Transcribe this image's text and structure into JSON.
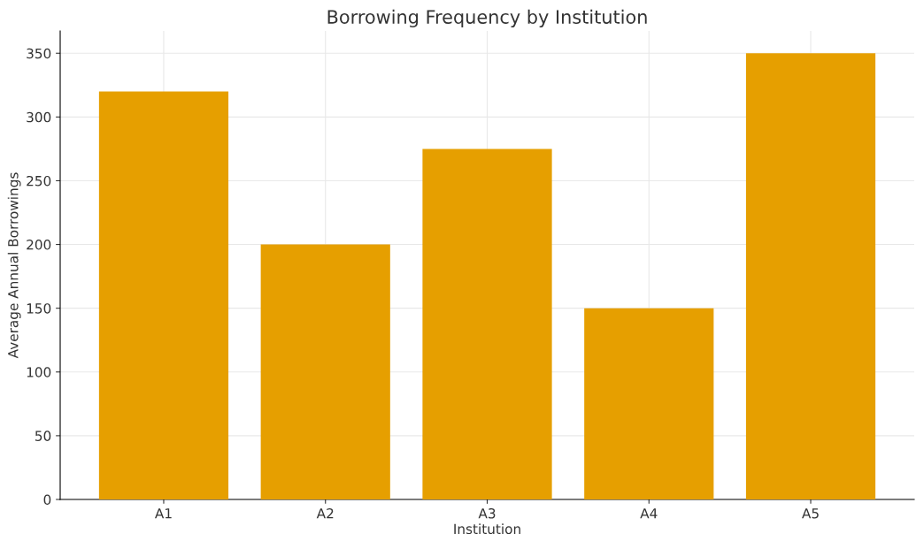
{
  "chart_data": {
    "type": "bar",
    "title": "Borrowing Frequency by Institution",
    "xlabel": "Institution",
    "ylabel": "Average Annual Borrowings",
    "categories": [
      "A1",
      "A2",
      "A3",
      "A4",
      "A5"
    ],
    "values": [
      320,
      200,
      275,
      150,
      350
    ],
    "color": "#e69f00",
    "ylim": [
      0,
      367.5
    ],
    "yticks": [
      0,
      50,
      100,
      150,
      200,
      250,
      300,
      350
    ],
    "grid": true
  }
}
